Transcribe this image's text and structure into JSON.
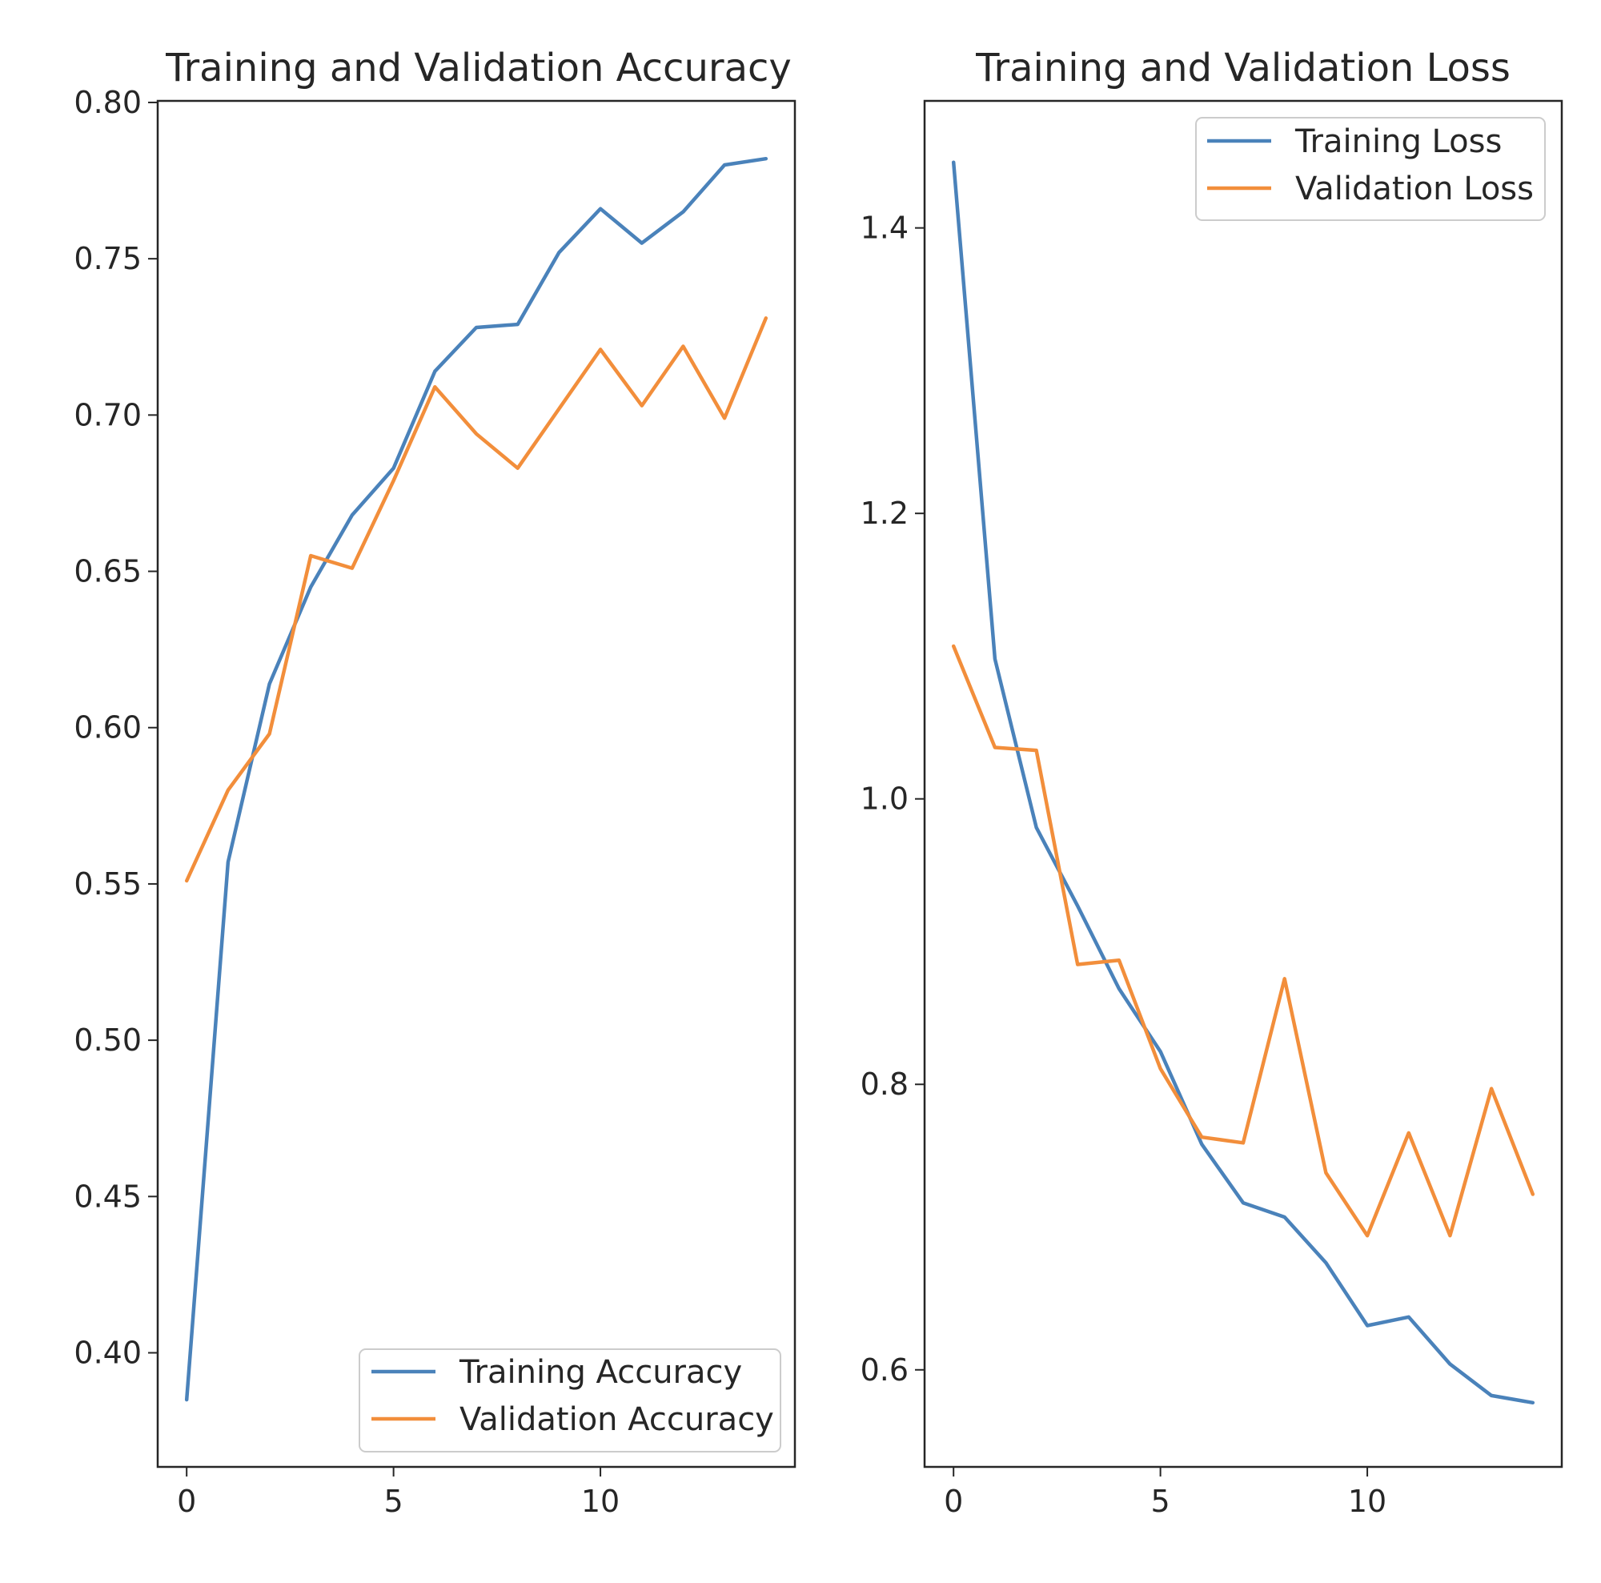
{
  "chart_data": [
    {
      "type": "line",
      "title": "Training and Validation Accuracy",
      "xlabel": "",
      "ylabel": "",
      "xlim": [
        -0.7,
        14.7
      ],
      "ylim": [
        0.3635,
        0.8005
      ],
      "xticks": [
        0,
        5,
        10
      ],
      "xtick_labels": [
        "0",
        "5",
        "10"
      ],
      "yticks": [
        0.4,
        0.45,
        0.5,
        0.55,
        0.6,
        0.65,
        0.7,
        0.75,
        0.8
      ],
      "ytick_labels": [
        "0.40",
        "0.45",
        "0.50",
        "0.55",
        "0.60",
        "0.65",
        "0.70",
        "0.75",
        "0.80"
      ],
      "legend_position": "lower right",
      "x": [
        0,
        1,
        2,
        3,
        4,
        5,
        6,
        7,
        8,
        9,
        10,
        11,
        12,
        13,
        14
      ],
      "series": [
        {
          "name": "Training Accuracy",
          "color": "#4a82ba",
          "values": [
            0.385,
            0.557,
            0.614,
            0.645,
            0.668,
            0.683,
            0.714,
            0.728,
            0.729,
            0.752,
            0.766,
            0.755,
            0.765,
            0.78,
            0.782
          ]
        },
        {
          "name": "Validation Accuracy",
          "color": "#f28e3b",
          "values": [
            0.551,
            0.58,
            0.598,
            0.655,
            0.651,
            0.679,
            0.709,
            0.694,
            0.683,
            0.702,
            0.721,
            0.703,
            0.722,
            0.699,
            0.731
          ]
        }
      ]
    },
    {
      "type": "line",
      "title": "Training and Validation Loss",
      "xlabel": "",
      "ylabel": "",
      "xlim": [
        -0.7,
        14.7
      ],
      "ylim": [
        0.532,
        1.489
      ],
      "xticks": [
        0,
        5,
        10
      ],
      "xtick_labels": [
        "0",
        "5",
        "10"
      ],
      "yticks": [
        0.6,
        0.8,
        1.0,
        1.2,
        1.4
      ],
      "ytick_labels": [
        "0.6",
        "0.8",
        "1.0",
        "1.2",
        "1.4"
      ],
      "legend_position": "upper right",
      "x": [
        0,
        1,
        2,
        3,
        4,
        5,
        6,
        7,
        8,
        9,
        10,
        11,
        12,
        13,
        14
      ],
      "series": [
        {
          "name": "Training Loss",
          "color": "#4a82ba",
          "values": [
            1.446,
            1.098,
            0.98,
            0.925,
            0.867,
            0.823,
            0.758,
            0.717,
            0.707,
            0.675,
            0.631,
            0.637,
            0.604,
            0.582,
            0.577
          ]
        },
        {
          "name": "Validation Loss",
          "color": "#f28e3b",
          "values": [
            1.107,
            1.036,
            1.034,
            0.884,
            0.887,
            0.811,
            0.763,
            0.759,
            0.874,
            0.738,
            0.694,
            0.766,
            0.694,
            0.797,
            0.723
          ]
        }
      ]
    }
  ]
}
